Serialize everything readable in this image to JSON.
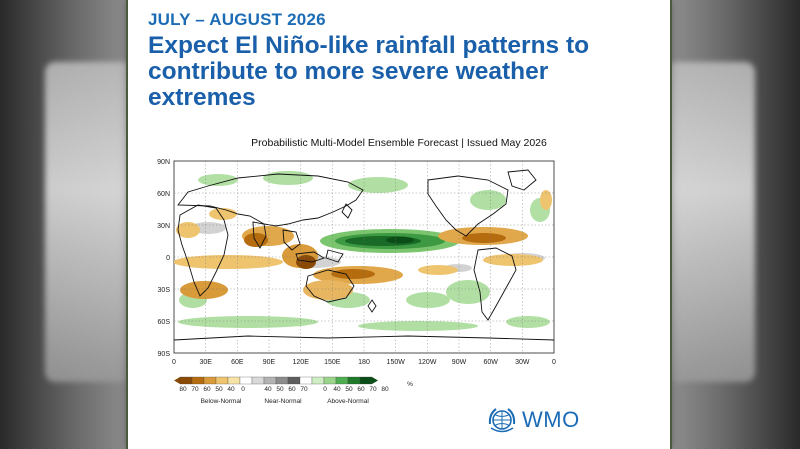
{
  "header": {
    "kicker": "JULY – AUGUST 2026",
    "headline": "Expect El Niño-like rainfall patterns to contribute to more severe weather extremes"
  },
  "map": {
    "title": "Probabilistic Multi-Model Ensemble Forecast | Issued May 2026",
    "lat_labels": [
      "90N",
      "60N",
      "30N",
      "0",
      "30S",
      "60S",
      "90S"
    ],
    "lon_labels": [
      "0",
      "30E",
      "60E",
      "90E",
      "120E",
      "150E",
      "180",
      "150W",
      "120W",
      "90W",
      "60W",
      "30W",
      "0"
    ]
  },
  "legend": {
    "tick_labels": [
      "80",
      "70",
      "60",
      "50",
      "40",
      "0",
      "40",
      "50",
      "60",
      "70",
      "0",
      "40",
      "50",
      "60",
      "70",
      "80"
    ],
    "unit": "%",
    "groups": [
      "Below-Normal",
      "Near-Normal",
      "Above-Normal"
    ],
    "colors": {
      "below": [
        "#8a4a05",
        "#b56c0f",
        "#d99a3a",
        "#efc46f",
        "#f7e2a8"
      ],
      "near": [
        "#ffffff",
        "#d9d9d9",
        "#b3b3b3",
        "#8c8c8c",
        "#5e5e5e"
      ],
      "above": [
        "#ffffff",
        "#cfeec4",
        "#9bd58c",
        "#4fae50",
        "#1f7a2b",
        "#0b4d17"
      ]
    }
  },
  "logo": {
    "text": "WMO",
    "icon": "wmo-emblem-icon"
  }
}
